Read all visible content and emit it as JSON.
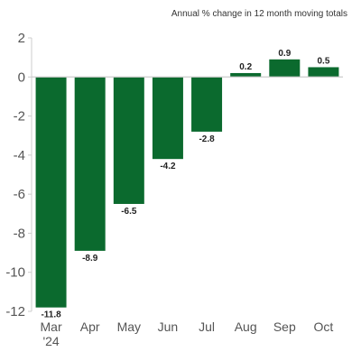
{
  "caption": "Annual % change in 12 month moving totals",
  "colors": {
    "bar": "#0b6a2e",
    "axis": "#cccccc",
    "text": "#555555"
  },
  "chart_data": {
    "type": "bar",
    "title": "",
    "xlabel": "",
    "ylabel": "",
    "ylim": [
      -12,
      2
    ],
    "yticks": [
      2,
      0,
      -2,
      -4,
      -6,
      -8,
      -10,
      -12
    ],
    "categories": [
      "Mar\n'24",
      "Apr",
      "May",
      "Jun",
      "Jul",
      "Aug",
      "Sep",
      "Oct"
    ],
    "values": [
      -11.8,
      -8.9,
      -6.5,
      -4.2,
      -2.8,
      0.2,
      0.9,
      0.5
    ],
    "data_labels": [
      "-11.8",
      "-8.9",
      "-6.5",
      "-4.2",
      "-2.8",
      "0.2",
      "0.9",
      "0.5"
    ],
    "grid": false,
    "legend": "none"
  }
}
